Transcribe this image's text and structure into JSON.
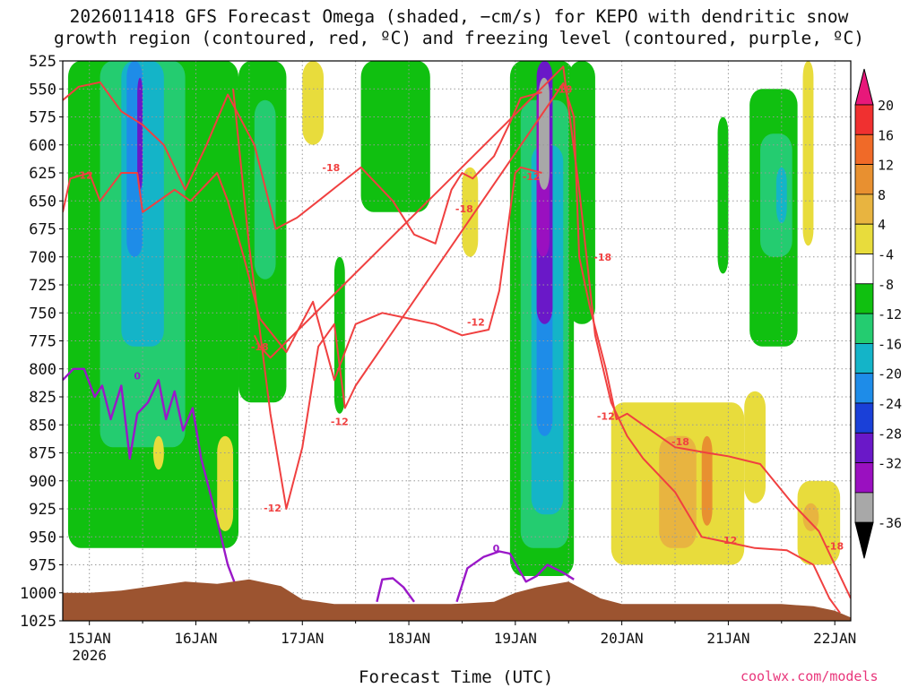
{
  "title_line1": "2026011418 GFS Forecast Omega (shaded, −cm/s) for KEPO with dendritic snow",
  "title_line2": "growth region (contoured, red, ºC) and freezing level (contoured, purple, ºC)",
  "xlabel": "Forecast Time (UTC)",
  "credit": "coolwx.com/models",
  "colors": {
    "dgz_contour": "#f04040",
    "freezing_contour": "#9a18c8",
    "terrain": "#9c5430",
    "grid": "#999999"
  },
  "chart_data": {
    "type": "heatmap",
    "title": "2026011418 GFS Forecast Omega (shaded, −cm/s) for KEPO with dendritic snow growth region (contoured, red, ºC) and freezing level (contoured, purple, ºC)",
    "xlabel": "Forecast Time (UTC)",
    "ylabel": "",
    "x_range_days": [
      14.75,
      22.15
    ],
    "y_levels_hpa": [
      525,
      550,
      575,
      600,
      625,
      650,
      675,
      700,
      725,
      750,
      775,
      800,
      825,
      850,
      875,
      900,
      925,
      950,
      975,
      1000,
      1025
    ],
    "y_range_hpa": [
      525,
      1025
    ],
    "x_ticks": [
      {
        "day": 15,
        "label": "15JAN",
        "sublabel": "2026"
      },
      {
        "day": 16,
        "label": "16JAN",
        "sublabel": ""
      },
      {
        "day": 17,
        "label": "17JAN",
        "sublabel": ""
      },
      {
        "day": 18,
        "label": "18JAN",
        "sublabel": ""
      },
      {
        "day": 19,
        "label": "19JAN",
        "sublabel": ""
      },
      {
        "day": 20,
        "label": "20JAN",
        "sublabel": ""
      },
      {
        "day": 21,
        "label": "21JAN",
        "sublabel": ""
      },
      {
        "day": 22,
        "label": "22JAN",
        "sublabel": ""
      }
    ],
    "colorbar": [
      {
        "label": "20",
        "color": "#f03030"
      },
      {
        "label": "16",
        "color": "#f06a28"
      },
      {
        "label": "12",
        "color": "#e89030"
      },
      {
        "label": "8",
        "color": "#e8b440"
      },
      {
        "label": "4",
        "color": "#e8dc3c"
      },
      {
        "label": "-4",
        "color": "#ffffff"
      },
      {
        "label": "-8",
        "color": "#10c010"
      },
      {
        "label": "-12",
        "color": "#24cc70"
      },
      {
        "label": "-16",
        "color": "#14b4c8"
      },
      {
        "label": "-20",
        "color": "#1e8ce8"
      },
      {
        "label": "-24",
        "color": "#1a40d8"
      },
      {
        "label": "-28",
        "color": "#6a18c8"
      },
      {
        "label": "-32",
        "color": "#9a10c0"
      },
      {
        "label": "-36",
        "color": "#a8a8a8"
      }
    ],
    "colorbar_top_color": "#e8187a",
    "colorbar_bottom_color": "#000000",
    "omega_regions": [
      {
        "x0": 14.8,
        "x1": 16.4,
        "p0": 525,
        "p1": 960,
        "value": -8
      },
      {
        "x0": 15.1,
        "x1": 15.9,
        "p0": 525,
        "p1": 870,
        "value": -12
      },
      {
        "x0": 15.3,
        "x1": 15.7,
        "p0": 525,
        "p1": 780,
        "value": -16
      },
      {
        "x0": 15.35,
        "x1": 15.5,
        "p0": 525,
        "p1": 700,
        "value": -20
      },
      {
        "x0": 15.45,
        "x1": 15.5,
        "p0": 540,
        "p1": 640,
        "value": -28
      },
      {
        "x0": 16.4,
        "x1": 16.85,
        "p0": 525,
        "p1": 830,
        "value": -8
      },
      {
        "x0": 16.55,
        "x1": 16.75,
        "p0": 560,
        "p1": 720,
        "value": -12
      },
      {
        "x0": 17.55,
        "x1": 18.2,
        "p0": 525,
        "p1": 660,
        "value": -8
      },
      {
        "x0": 17.3,
        "x1": 17.4,
        "p0": 700,
        "p1": 840,
        "value": -8
      },
      {
        "x0": 18.95,
        "x1": 19.55,
        "p0": 525,
        "p1": 985,
        "value": -8
      },
      {
        "x0": 19.05,
        "x1": 19.5,
        "p0": 560,
        "p1": 960,
        "value": -12
      },
      {
        "x0": 19.15,
        "x1": 19.45,
        "p0": 600,
        "p1": 930,
        "value": -16
      },
      {
        "x0": 19.2,
        "x1": 19.35,
        "p0": 600,
        "p1": 860,
        "value": -20
      },
      {
        "x0": 19.2,
        "x1": 19.35,
        "p0": 525,
        "p1": 760,
        "value": -28
      },
      {
        "x0": 19.2,
        "x1": 19.32,
        "p0": 550,
        "p1": 700,
        "value": -32
      },
      {
        "x0": 19.22,
        "x1": 19.32,
        "p0": 540,
        "p1": 640,
        "value": -36
      },
      {
        "x0": 19.5,
        "x1": 19.75,
        "p0": 525,
        "p1": 760,
        "value": -8
      },
      {
        "x0": 20.9,
        "x1": 21.0,
        "p0": 575,
        "p1": 715,
        "value": -8
      },
      {
        "x0": 21.2,
        "x1": 21.65,
        "p0": 550,
        "p1": 780,
        "value": -8
      },
      {
        "x0": 21.3,
        "x1": 21.6,
        "p0": 590,
        "p1": 700,
        "value": -12
      },
      {
        "x0": 21.45,
        "x1": 21.55,
        "p0": 620,
        "p1": 670,
        "value": -16
      },
      {
        "x0": 16.2,
        "x1": 16.35,
        "p0": 860,
        "p1": 945,
        "value": 4
      },
      {
        "x0": 15.6,
        "x1": 15.7,
        "p0": 860,
        "p1": 890,
        "value": 4
      },
      {
        "x0": 17.0,
        "x1": 17.2,
        "p0": 525,
        "p1": 600,
        "value": 4
      },
      {
        "x0": 18.5,
        "x1": 18.65,
        "p0": 620,
        "p1": 700,
        "value": 4
      },
      {
        "x0": 19.9,
        "x1": 21.15,
        "p0": 830,
        "p1": 975,
        "value": 4
      },
      {
        "x0": 20.35,
        "x1": 20.7,
        "p0": 860,
        "p1": 960,
        "value": 8
      },
      {
        "x0": 20.75,
        "x1": 20.85,
        "p0": 860,
        "p1": 940,
        "value": 12
      },
      {
        "x0": 21.15,
        "x1": 21.35,
        "p0": 820,
        "p1": 920,
        "value": 4
      },
      {
        "x0": 21.65,
        "x1": 22.05,
        "p0": 900,
        "p1": 975,
        "value": 4
      },
      {
        "x0": 21.7,
        "x1": 21.85,
        "p0": 920,
        "p1": 945,
        "value": 8
      },
      {
        "x0": 21.7,
        "x1": 21.8,
        "p0": 525,
        "p1": 690,
        "value": 4
      }
    ],
    "dgz_minus12_upper": {
      "x": [
        14.75,
        14.82,
        15.0,
        15.1,
        15.3,
        15.45,
        15.5,
        15.65,
        15.8,
        15.95,
        16.05,
        16.2,
        16.3,
        16.45,
        16.6,
        16.85,
        17.1,
        17.3,
        17.5,
        17.75,
        18.0,
        18.25,
        18.5,
        18.75,
        18.85,
        19.0,
        19.05,
        19.25
      ],
      "p": [
        660,
        630,
        625,
        650,
        625,
        625,
        660,
        650,
        640,
        650,
        640,
        625,
        650,
        700,
        755,
        785,
        740,
        810,
        760,
        750,
        755,
        760,
        770,
        765,
        730,
        625,
        620,
        625
      ]
    },
    "dgz_minus18_upper": {
      "x": [
        14.75,
        14.9,
        15.1,
        15.3,
        15.5,
        15.7,
        15.9,
        16.1,
        16.3,
        16.55,
        16.75,
        16.95,
        17.15,
        17.35,
        17.55,
        17.85,
        18.05,
        18.25,
        18.4,
        18.5,
        18.6,
        18.8,
        18.95,
        19.05,
        19.25
      ],
      "p": [
        560,
        548,
        544,
        570,
        582,
        600,
        640,
        600,
        555,
        600,
        675,
        665,
        650,
        635,
        620,
        650,
        680,
        688,
        640,
        625,
        630,
        610,
        580,
        558,
        553
      ]
    },
    "dgz_lower_minus12": {
      "x": [
        16.35,
        16.5,
        16.7,
        16.85,
        17.0,
        17.15,
        17.3,
        17.4,
        17.5,
        19.45,
        19.55,
        19.6,
        19.7,
        19.85,
        19.95,
        20.05,
        20.2,
        20.5,
        20.8,
        21.0,
        21.3,
        21.6,
        21.85,
        22.0,
        22.15
      ],
      "p": [
        550,
        690,
        840,
        925,
        870,
        780,
        760,
        835,
        815,
        545,
        575,
        700,
        745,
        800,
        845,
        840,
        850,
        870,
        875,
        878,
        885,
        920,
        945,
        975,
        1005
      ]
    },
    "dgz_lower_minus18": {
      "x": [
        16.55,
        16.6,
        16.7,
        19.45,
        19.6,
        19.75,
        19.9,
        20.05,
        20.2,
        20.5,
        20.75,
        21.0,
        21.25,
        21.55,
        21.8,
        21.95,
        22.05
      ],
      "p": [
        770,
        780,
        790,
        530,
        640,
        770,
        830,
        860,
        880,
        910,
        950,
        955,
        960,
        962,
        975,
        1005,
        1018
      ]
    },
    "contour_labels_dgz": [
      {
        "x": 14.95,
        "p": 627,
        "text": "-12"
      },
      {
        "x": 16.6,
        "p": 780,
        "text": "-18"
      },
      {
        "x": 16.72,
        "p": 924,
        "text": "-12"
      },
      {
        "x": 17.27,
        "p": 620,
        "text": "-18"
      },
      {
        "x": 17.35,
        "p": 847,
        "text": "-12"
      },
      {
        "x": 18.52,
        "p": 657,
        "text": "-18"
      },
      {
        "x": 18.63,
        "p": 758,
        "text": "-12"
      },
      {
        "x": 19.15,
        "p": 628,
        "text": "-12"
      },
      {
        "x": 19.45,
        "p": 550,
        "text": "-18"
      },
      {
        "x": 19.82,
        "p": 700,
        "text": "-18"
      },
      {
        "x": 19.85,
        "p": 842,
        "text": "-12"
      },
      {
        "x": 20.55,
        "p": 865,
        "text": "-18"
      },
      {
        "x": 21.0,
        "p": 953,
        "text": "-12"
      },
      {
        "x": 22.0,
        "p": 958,
        "text": "-18"
      }
    ],
    "freezing_level_segments": [
      {
        "x": [
          14.75,
          14.85,
          14.95,
          15.05,
          15.12,
          15.2,
          15.3,
          15.38,
          15.45,
          15.55,
          15.65,
          15.72,
          15.8,
          15.88,
          15.97,
          16.05,
          16.2,
          16.3,
          16.4
        ],
        "p": [
          810,
          800,
          800,
          825,
          815,
          845,
          815,
          880,
          840,
          830,
          810,
          845,
          820,
          855,
          835,
          880,
          935,
          975,
          1000
        ]
      },
      {
        "x": [
          17.7,
          17.75,
          17.85,
          17.95,
          18.05
        ],
        "p": [
          1008,
          988,
          987,
          995,
          1008
        ]
      },
      {
        "x": [
          18.45,
          18.55,
          18.7,
          18.85,
          18.95,
          19.1,
          19.2,
          19.3,
          19.45,
          19.55
        ],
        "p": [
          1008,
          978,
          968,
          963,
          965,
          990,
          985,
          975,
          982,
          988
        ]
      }
    ],
    "freezing_labels": [
      {
        "x": 15.45,
        "p": 806,
        "text": "0"
      },
      {
        "x": 18.82,
        "p": 960,
        "text": "0"
      }
    ],
    "terrain_p": {
      "x": [
        14.75,
        15.0,
        15.3,
        15.6,
        15.9,
        16.2,
        16.5,
        16.8,
        17.0,
        17.3,
        17.6,
        18.0,
        18.4,
        18.8,
        19.0,
        19.2,
        19.5,
        19.8,
        20.0,
        20.5,
        21.0,
        21.5,
        21.8,
        22.0,
        22.15
      ],
      "p": [
        1000,
        1000,
        998,
        994,
        990,
        992,
        988,
        994,
        1006,
        1010,
        1010,
        1010,
        1010,
        1008,
        1000,
        995,
        990,
        1005,
        1010,
        1010,
        1010,
        1010,
        1012,
        1016,
        1022
      ]
    }
  }
}
